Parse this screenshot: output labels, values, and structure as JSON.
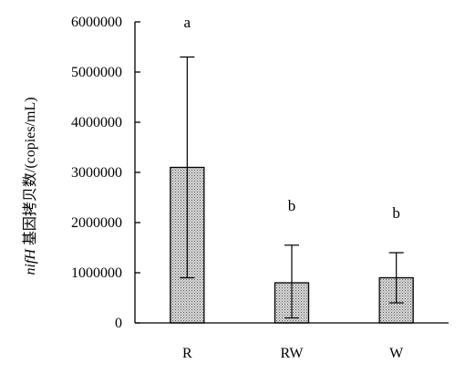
{
  "chart_data": {
    "type": "bar",
    "categories": [
      "R",
      "RW",
      "W"
    ],
    "values": [
      3100000,
      800000,
      900000
    ],
    "error_upper": [
      2200000,
      750000,
      500000
    ],
    "error_lower": [
      2200000,
      700000,
      500000
    ],
    "significance": [
      "a",
      "b",
      "b"
    ],
    "ylabel_italic": "nifH",
    "ylabel_rest": " 基因拷贝数/(copies/mL)",
    "xlabel": "",
    "ylim": [
      0,
      6000000
    ],
    "yticks": [
      0,
      1000000,
      2000000,
      3000000,
      4000000,
      5000000,
      6000000
    ],
    "ytick_labels": [
      "0",
      "1000000",
      "2000000",
      "3000000",
      "4000000",
      "5000000",
      "6000000"
    ],
    "grid": false,
    "legend": "none",
    "bar_fill_pattern": "dotted-gray",
    "colors": {
      "axis": "#000000",
      "bar_fill": "#cfcfcf",
      "bar_dots": "#555555"
    }
  }
}
